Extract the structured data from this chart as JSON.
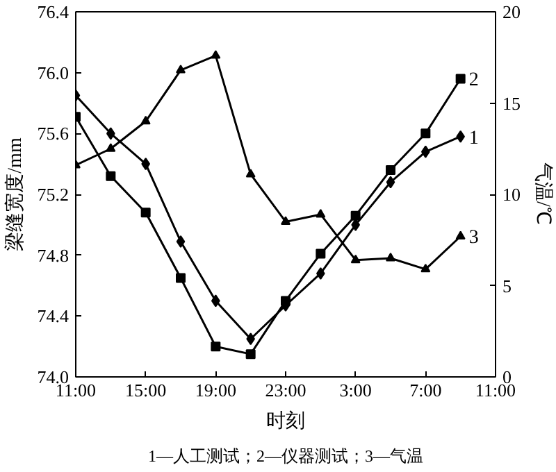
{
  "chart_data": {
    "type": "line",
    "xlabel": "时刻",
    "ylabel": "梁缝宽度/mm",
    "y2label": "气温/℃",
    "x": [
      "2000-01-01T11:00",
      "2000-01-01T13:00",
      "2000-01-01T15:00",
      "2000-01-01T17:00",
      "2000-01-01T19:00",
      "2000-01-01T21:00",
      "2000-01-01T23:00",
      "2000-01-02T01:00",
      "2000-01-02T03:00",
      "2000-01-02T05:00",
      "2000-01-02T07:00",
      "2000-01-02T09:00"
    ],
    "xlim": [
      "2000-01-01T11:00",
      "2000-01-02T11:00"
    ],
    "xticks": [
      {
        "value": "2000-01-01T11:00",
        "label": "11:00"
      },
      {
        "value": "2000-01-01T15:00",
        "label": "15:00"
      },
      {
        "value": "2000-01-01T19:00",
        "label": "19:00"
      },
      {
        "value": "2000-01-01T23:00",
        "label": "23:00"
      },
      {
        "value": "2000-01-02T03:00",
        "label": "3:00"
      },
      {
        "value": "2000-01-02T07:00",
        "label": "7:00"
      },
      {
        "value": "2000-01-02T11:00",
        "label": "11:00"
      }
    ],
    "ylim": [
      74.0,
      76.4
    ],
    "yticks": [
      {
        "value": 74.0,
        "label": "74.0"
      },
      74.4,
      74.8,
      75.2,
      75.6,
      {
        "value": 76.0,
        "label": "76.0"
      },
      76.4
    ],
    "y2lim": [
      0,
      20
    ],
    "y2ticks": [
      0,
      5,
      10,
      15,
      20
    ],
    "series": [
      {
        "name": "1",
        "color": "#000000",
        "marker": "diamond",
        "values": [
          75.85,
          75.6,
          75.4,
          74.89,
          74.5,
          74.25,
          74.47,
          74.68,
          75.0,
          75.28,
          75.48,
          75.58
        ]
      },
      {
        "name": "2",
        "color": "#000000",
        "marker": "square",
        "values": [
          75.71,
          75.32,
          75.08,
          74.65,
          74.2,
          74.15,
          74.5,
          74.81,
          75.06,
          75.36,
          75.6,
          75.96
        ]
      },
      {
        "name": "3",
        "color": "#000000",
        "marker": "triangle",
        "axis": "y2",
        "values": [
          11.6,
          12.5,
          14.0,
          16.8,
          17.6,
          11.1,
          8.5,
          8.9,
          6.4,
          6.5,
          5.9,
          7.7
        ]
      }
    ],
    "grid": false,
    "legend": false,
    "annotations": [
      "1—人工测试；2—仪器测试；3—气温"
    ]
  }
}
